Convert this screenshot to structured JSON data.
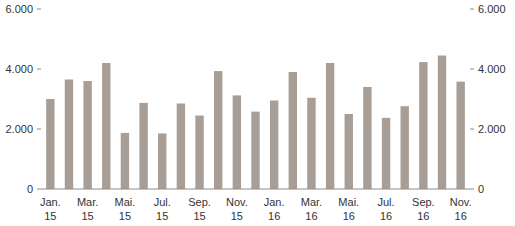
{
  "chart_data": {
    "type": "bar",
    "categories": [
      "Jan. 15",
      null,
      "Mar. 15",
      null,
      "Mai. 15",
      null,
      "Jul. 15",
      null,
      "Sep. 15",
      null,
      "Nov. 15",
      null,
      "Jan. 16",
      null,
      "Mar. 16",
      null,
      "Mai. 16",
      null,
      "Jul. 16",
      null,
      "Sep. 16",
      null,
      "Nov. 16"
    ],
    "values": [
      3000,
      3650,
      3600,
      4200,
      1870,
      2870,
      1850,
      2850,
      2450,
      3930,
      3120,
      2580,
      2950,
      3900,
      3040,
      4200,
      2500,
      3400,
      2370,
      2760,
      4230,
      4450,
      3580
    ],
    "color": "#a89e95",
    "ylim": [
      0,
      6000
    ],
    "yticks": [
      0,
      {
        "value": 2000,
        "label": "2.000"
      },
      {
        "value": 4000,
        "label": "4.000"
      },
      {
        "value": 6000,
        "label": "6.000"
      }
    ],
    "grid": false
  }
}
